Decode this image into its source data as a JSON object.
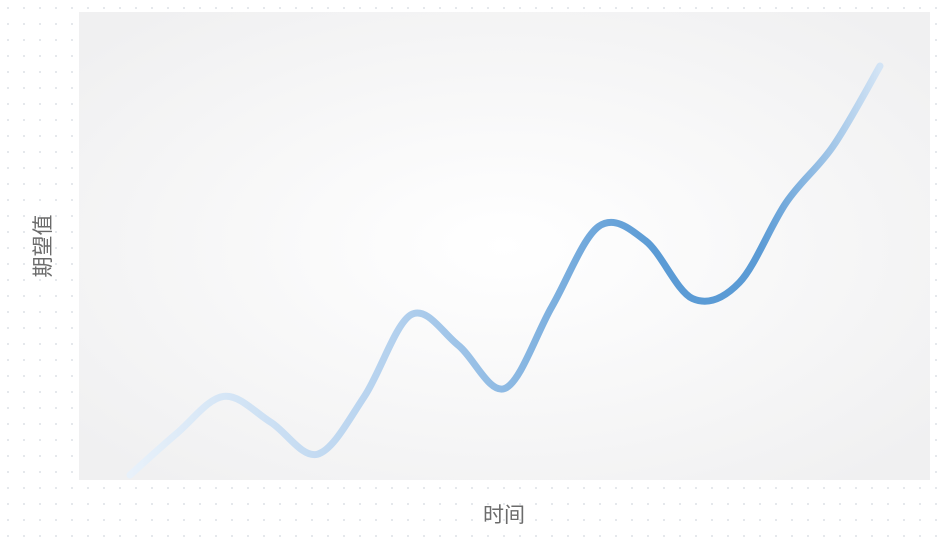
{
  "chart_data": {
    "type": "line",
    "xlabel": "时间",
    "ylabel": "期望值",
    "x": [
      0,
      1,
      2,
      3,
      4,
      5,
      6,
      7,
      8,
      9,
      10,
      11,
      12,
      13,
      14,
      15,
      16
    ],
    "series": [
      {
        "values": [
          0.0,
          0.26,
          0.49,
          0.33,
          0.13,
          0.49,
          1.0,
          0.81,
          0.54,
          1.05,
          1.55,
          1.46,
          1.1,
          1.2,
          1.7,
          2.05,
          2.55
        ]
      }
    ],
    "xlim": [
      0,
      16
    ],
    "ylim": [
      0,
      2.65
    ],
    "grid": false,
    "colors": {
      "line_start": "#e8f1fa",
      "line_peak": "#5b9bd5",
      "line_end": "#d3e4f5",
      "plot_background_center": "#ffffff",
      "plot_background_edge": "#f0f0f1"
    }
  }
}
